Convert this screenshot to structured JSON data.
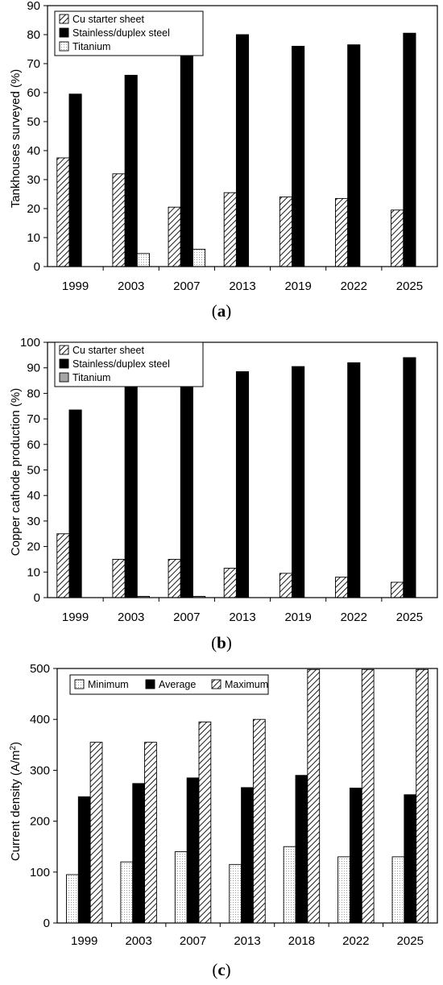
{
  "chart_data": [
    {
      "type": "bar",
      "panel_label": "a",
      "ylabel": "Tankhouses surveyed (%)",
      "xlabel": "",
      "categories": [
        "1999",
        "2003",
        "2007",
        "2013",
        "2019",
        "2022",
        "2025"
      ],
      "ylim": [
        0,
        90
      ],
      "yticks": [
        0,
        10,
        20,
        30,
        40,
        50,
        60,
        70,
        80,
        90
      ],
      "legend_position": "top-left",
      "series": [
        {
          "name": "Cu starter sheet",
          "pattern": "hatch",
          "values": [
            37.5,
            32,
            20.5,
            25.5,
            24,
            23.5,
            19.5
          ]
        },
        {
          "name": "Stainless/duplex steel",
          "pattern": "solid-black",
          "values": [
            59.5,
            66,
            73.5,
            80,
            76,
            76.5,
            80.5
          ]
        },
        {
          "name": "Titanium",
          "pattern": "dots",
          "values": [
            0,
            4.5,
            6,
            0,
            0,
            0,
            0
          ]
        }
      ]
    },
    {
      "type": "bar",
      "panel_label": "b",
      "ylabel": "Copper cathode production (%)",
      "xlabel": "",
      "categories": [
        "1999",
        "2003",
        "2007",
        "2013",
        "2019",
        "2022",
        "2025"
      ],
      "ylim": [
        0,
        100
      ],
      "yticks": [
        0,
        10,
        20,
        30,
        40,
        50,
        60,
        70,
        80,
        90,
        100
      ],
      "legend_position": "top-left",
      "series": [
        {
          "name": "Cu starter sheet",
          "pattern": "hatch",
          "values": [
            25,
            15,
            15,
            11.5,
            9.5,
            8,
            6
          ]
        },
        {
          "name": "Stainless/duplex steel",
          "pattern": "solid-black",
          "values": [
            73.5,
            86,
            84,
            88.5,
            90.5,
            92,
            94
          ]
        },
        {
          "name": "Titanium",
          "pattern": "solid-gray",
          "values": [
            0,
            0.5,
            0.5,
            0,
            0,
            0,
            0
          ]
        }
      ]
    },
    {
      "type": "bar",
      "panel_label": "c",
      "ylabel": "Current density (A/m²)",
      "xlabel": "",
      "categories": [
        "1999",
        "2003",
        "2007",
        "2013",
        "2018",
        "2022",
        "2025"
      ],
      "ylim": [
        0,
        500
      ],
      "yticks": [
        0,
        100,
        200,
        300,
        400,
        500
      ],
      "legend_position": "top",
      "series": [
        {
          "name": "Minimum",
          "pattern": "dots",
          "values": [
            95,
            120,
            140,
            115,
            150,
            130,
            130
          ]
        },
        {
          "name": "Average",
          "pattern": "solid-black",
          "values": [
            248,
            274,
            285,
            266,
            290,
            265,
            252
          ]
        },
        {
          "name": "Maximum",
          "pattern": "hatch",
          "values": [
            355,
            355,
            395,
            400,
            498,
            498,
            498
          ]
        }
      ]
    }
  ]
}
